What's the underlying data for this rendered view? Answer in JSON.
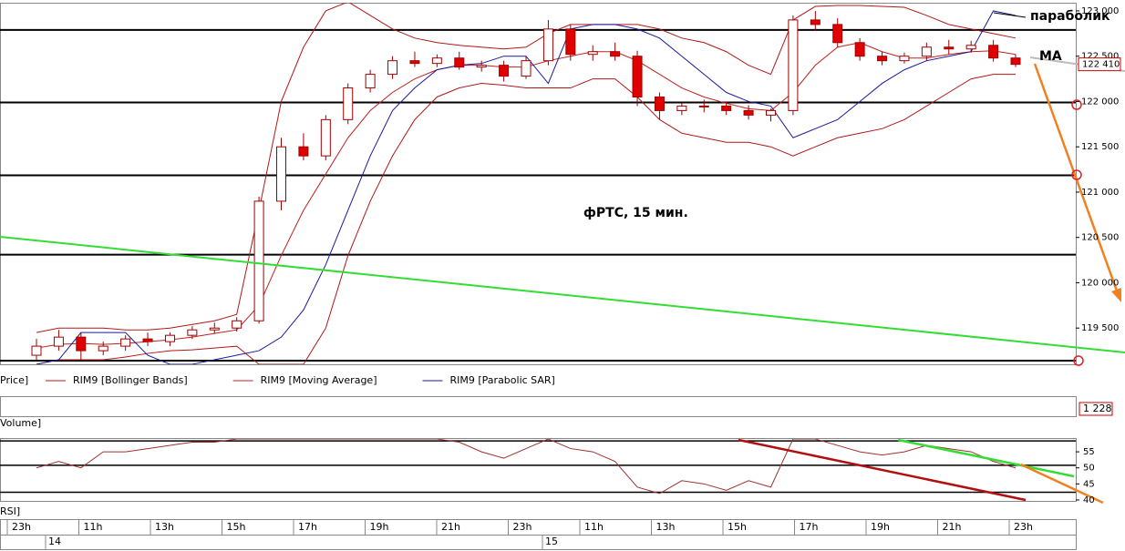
{
  "chart_data": [
    {
      "type": "candlestick",
      "annotations": [
        "фРТС,  15 мин.",
        "параболик",
        "MA"
      ],
      "ylim": [
        119100,
        123090
      ],
      "yticks": [
        {
          "value": 123000,
          "label": "123 000"
        },
        {
          "value": 122500,
          "label": "122 500"
        },
        {
          "value": 122000,
          "label": "122 000"
        },
        {
          "value": 121500,
          "label": "121 500"
        },
        {
          "value": 121000,
          "label": "121 000"
        },
        {
          "value": 120500,
          "label": "120 500"
        },
        {
          "value": 120000,
          "label": "120 000"
        },
        {
          "value": 119500,
          "label": "119 500"
        }
      ],
      "levels": [
        122790,
        121990,
        121185,
        120310,
        119140
      ],
      "last_price": {
        "value": 122410,
        "label": "122 410"
      },
      "price": {
        "name": "Price]",
        "up_color": "#ffffff",
        "down_color": "#e00000",
        "edge_color": "#a00000",
        "open": [
          119200,
          119300,
          119400,
          119250,
          119300,
          119380,
          119350,
          119420,
          119480,
          119500,
          119580,
          120900,
          121500,
          121400,
          121800,
          122150,
          122300,
          122450,
          122420,
          122480,
          122380,
          122400,
          122280,
          122450,
          122800,
          122520,
          122550,
          122500,
          122050,
          121900,
          121950,
          121950,
          121900,
          121850,
          121900,
          122900,
          122850,
          122650,
          122500,
          122450,
          122500,
          122600,
          122580,
          122620,
          122480
        ],
        "high": [
          119380,
          119480,
          119450,
          119350,
          119420,
          119450,
          119450,
          119520,
          119560,
          119620,
          120950,
          121600,
          121650,
          121850,
          122200,
          122350,
          122500,
          122550,
          122520,
          122550,
          122450,
          122450,
          122500,
          122900,
          122850,
          122620,
          122650,
          122560,
          122100,
          121980,
          122020,
          122000,
          121960,
          121920,
          122950,
          123000,
          122920,
          122700,
          122550,
          122540,
          122650,
          122680,
          122670,
          122680,
          122520
        ],
        "low": [
          119150,
          119250,
          119150,
          119200,
          119250,
          119300,
          119300,
          119380,
          119440,
          119460,
          119550,
          120800,
          121350,
          121350,
          121750,
          122100,
          122250,
          122380,
          122380,
          122350,
          122330,
          122220,
          122250,
          122400,
          122450,
          122450,
          122450,
          121950,
          121800,
          121850,
          121880,
          121850,
          121800,
          121780,
          121850,
          122780,
          122600,
          122450,
          122400,
          122420,
          122450,
          122520,
          122540,
          122440,
          122380
        ],
        "close": [
          119300,
          119400,
          119250,
          119300,
          119380,
          119350,
          119420,
          119480,
          119500,
          119580,
          120900,
          121500,
          121400,
          121800,
          122150,
          122300,
          122450,
          122420,
          122480,
          122380,
          122400,
          122280,
          122450,
          122800,
          122520,
          122550,
          122500,
          122050,
          121900,
          121950,
          121950,
          121900,
          121850,
          121900,
          122900,
          122850,
          122650,
          122500,
          122450,
          122500,
          122600,
          122580,
          122620,
          122480,
          122410
        ]
      },
      "series": [
        {
          "name": "RIM9 [Bollinger Bands]",
          "color": "#b01818",
          "upper": [
            119450,
            119500,
            119500,
            119500,
            119480,
            119480,
            119500,
            119540,
            119580,
            119650,
            120800,
            122000,
            122600,
            123000,
            123100,
            122950,
            122800,
            122700,
            122650,
            122620,
            122600,
            122580,
            122600,
            122750,
            122850,
            122850,
            122850,
            122850,
            122800,
            122700,
            122650,
            122550,
            122400,
            122300,
            122900,
            123050,
            123060,
            123060,
            123050,
            123040,
            122950,
            122850,
            122800,
            122750,
            122700
          ],
          "lower": [
            119100,
            119150,
            119150,
            119150,
            119180,
            119220,
            119250,
            119260,
            119280,
            119300,
            119100,
            119100,
            119100,
            119500,
            120300,
            120900,
            121400,
            121800,
            122050,
            122150,
            122200,
            122180,
            122150,
            122150,
            122150,
            122250,
            122250,
            122050,
            121800,
            121650,
            121600,
            121550,
            121550,
            121500,
            121400,
            121500,
            121600,
            121650,
            121700,
            121800,
            121950,
            122100,
            122250,
            122300,
            122300
          ]
        },
        {
          "name": "RIM9 [Moving Average]",
          "color": "#c02020",
          "values": [
            119280,
            119320,
            119330,
            119320,
            119330,
            119350,
            119370,
            119400,
            119440,
            119480,
            119750,
            120300,
            120800,
            121200,
            121600,
            121900,
            122100,
            122250,
            122350,
            122400,
            122400,
            122380,
            122380,
            122450,
            122500,
            122550,
            122550,
            122450,
            122300,
            122150,
            122050,
            121980,
            121920,
            121900,
            122100,
            122400,
            122600,
            122650,
            122550,
            122480,
            122480,
            122520,
            122550,
            122560,
            122520
          ]
        },
        {
          "name": "RIM9 [Parabolic SAR]",
          "color": "#1a1a9a",
          "values": [
            119100,
            119150,
            119450,
            119450,
            119450,
            119200,
            119100,
            119100,
            119150,
            119200,
            119250,
            119400,
            119700,
            120200,
            120800,
            121400,
            121900,
            122150,
            122350,
            122400,
            122420,
            122500,
            122500,
            122200,
            122800,
            122850,
            122850,
            122800,
            122700,
            122500,
            122300,
            122100,
            122000,
            121950,
            121600,
            121700,
            121800,
            122000,
            122200,
            122350,
            122450,
            122500,
            122550,
            123000,
            122950
          ]
        }
      ]
    },
    {
      "type": "line",
      "ylim": [
        39.7,
        59
      ],
      "yticks": [
        55,
        50,
        45,
        40
      ],
      "levels": [
        58.4,
        50.8,
        42.4
      ],
      "series": [
        {
          "name": "RSI]",
          "color": "#a03030",
          "values": [
            50,
            52,
            50,
            55,
            55,
            56,
            57,
            58,
            58,
            59,
            59,
            59,
            59,
            59,
            59,
            59,
            59,
            59,
            59,
            58,
            55,
            53,
            56,
            59,
            56,
            55,
            52,
            44,
            42,
            46,
            45,
            43,
            46,
            44,
            59,
            59,
            57,
            55,
            54,
            55,
            57,
            56,
            55,
            52,
            50
          ]
        }
      ]
    }
  ],
  "volume": {
    "name": "Volume]",
    "last": {
      "value": 1228,
      "label": "1 228"
    }
  },
  "time_axis": {
    "hours": [
      "23h",
      "11h",
      "13h",
      "15h",
      "17h",
      "19h",
      "21h",
      "23h",
      "11h",
      "13h",
      "15h",
      "17h",
      "19h",
      "21h",
      "23h"
    ],
    "days": [
      "14",
      "15"
    ]
  }
}
